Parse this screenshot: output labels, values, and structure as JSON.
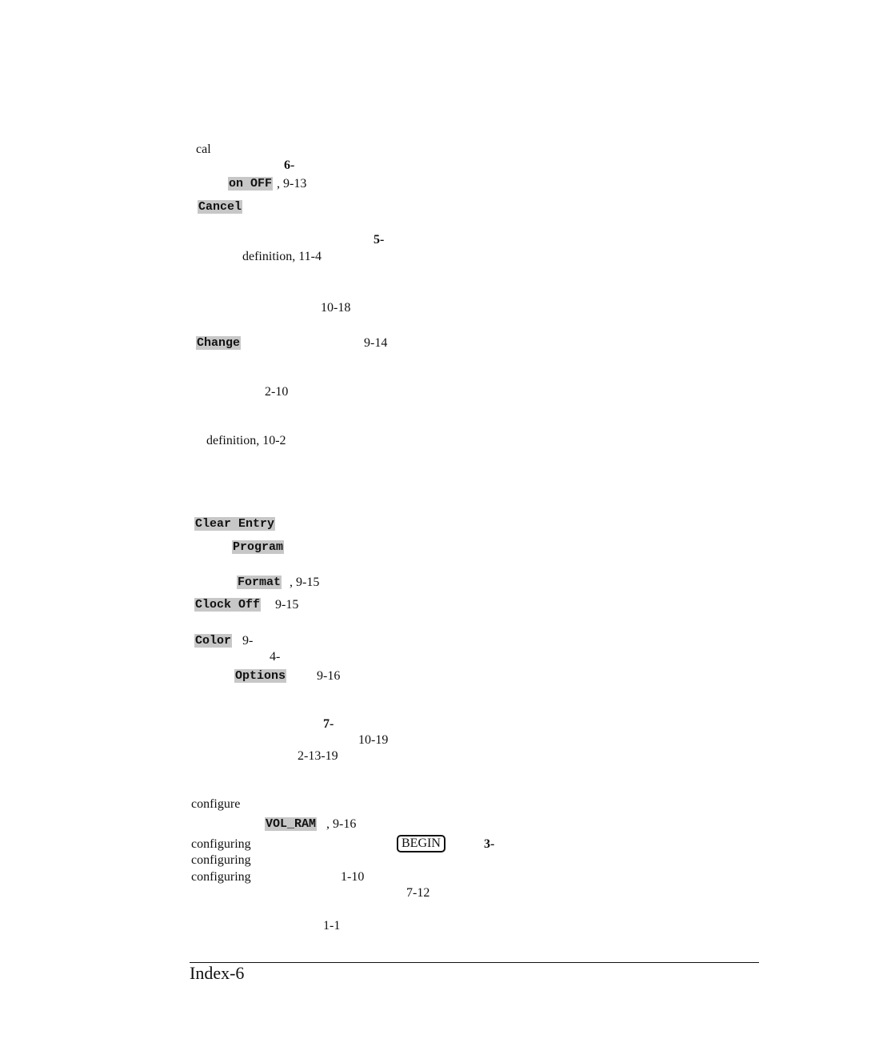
{
  "entries": [
    "cal",
    "6-",
    "on OFF",
    ", 9-13",
    "Cancel",
    "5-",
    "definition, 11-4",
    "10-18",
    "Change",
    "9-14",
    "2-10",
    "definition, 10-2",
    "Clear Entry",
    "Program",
    "Format",
    ", 9-15",
    "Clock Off",
    "9-15",
    "Color",
    "9-",
    "4-",
    "Options",
    "9-16",
    "7-",
    "10-19",
    "2-13-19",
    "configure",
    "VOL_RAM",
    ", 9-16",
    "configuring",
    "BEGIN",
    "3-",
    "configuring",
    "configuring",
    "1-10",
    "7-12",
    "1-1"
  ],
  "footer": {
    "page_label": "Index-6"
  }
}
